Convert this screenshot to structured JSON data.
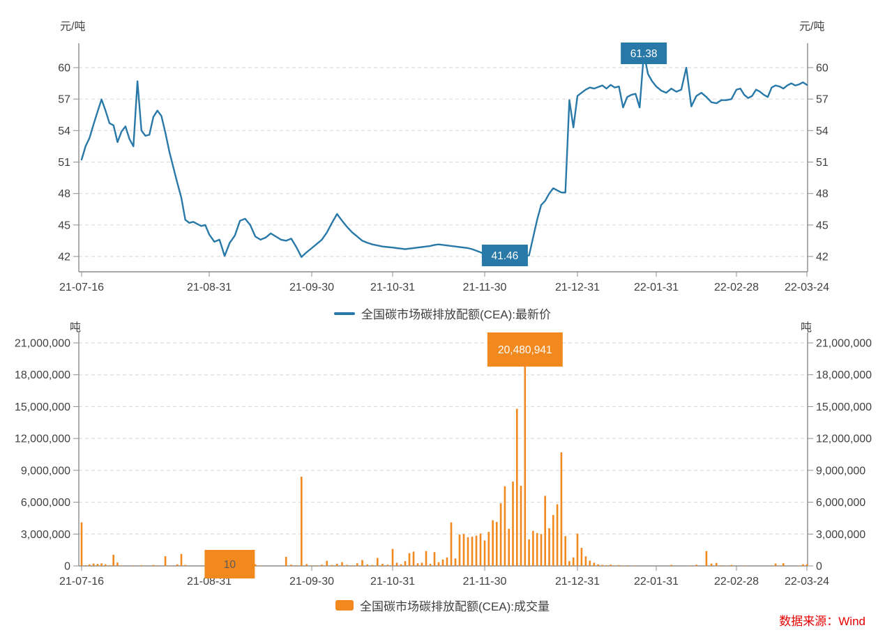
{
  "page": {
    "background": "#ffffff",
    "source_note": "数据来源：Wind",
    "source_note_color": "#e60000"
  },
  "colors": {
    "price_line": "#2878a8",
    "price_label_bg": "#2878a8",
    "volume_bar": "#f2891e",
    "volume_label_bg": "#f2891e",
    "grid": "#dcdcdc",
    "axis": "#8c8c8c",
    "tick_text": "#404040",
    "label_text_light": "#ffffff",
    "label_text_dark": "#595959"
  },
  "chart_data": [
    {
      "type": "line",
      "name": "全国碳市场碳排放配额(CEA):最新价",
      "unit_left": "元/吨",
      "unit_right": "元/吨",
      "color": "#2878a8",
      "ylim": [
        41,
        61.5
      ],
      "yticks": [
        42,
        45,
        48,
        51,
        54,
        57,
        60
      ],
      "grid": "dashed",
      "legend_position": "bottom",
      "x_tick_labels": [
        "21-07-16",
        "21-08-31",
        "21-09-30",
        "21-10-31",
        "21-11-30",
        "21-12-31",
        "22-01-31",
        "22-02-28",
        "22-03-24"
      ],
      "x_tick_indices": [
        0,
        32,
        52,
        68,
        90,
        113,
        132,
        148,
        166
      ],
      "values": [
        51.23,
        52.5,
        53.3,
        54.6,
        55.8,
        56.97,
        55.9,
        54.7,
        54.5,
        52.9,
        53.9,
        54.4,
        53.2,
        52.5,
        58.7,
        54.0,
        53.5,
        53.6,
        55.3,
        55.9,
        55.4,
        53.8,
        52.0,
        50.5,
        49.0,
        47.6,
        45.5,
        45.2,
        45.3,
        45.1,
        44.9,
        45.0,
        44.1,
        43.4,
        43.6,
        42.05,
        43.3,
        44.0,
        45.4,
        45.6,
        45.0,
        43.9,
        43.6,
        43.8,
        44.2,
        43.9,
        43.6,
        43.5,
        43.7,
        42.9,
        41.95,
        42.4,
        42.8,
        43.2,
        43.6,
        44.3,
        45.2,
        46.05,
        45.4,
        44.8,
        44.3,
        43.9,
        43.5,
        43.3,
        43.15,
        43.05,
        42.95,
        42.9,
        42.85,
        42.8,
        42.75,
        42.7,
        42.75,
        42.8,
        42.85,
        42.9,
        42.95,
        43.0,
        43.1,
        43.15,
        43.1,
        43.05,
        43.0,
        42.95,
        42.9,
        42.85,
        42.8,
        42.7,
        42.55,
        42.4,
        42.2,
        41.95,
        41.75,
        41.6,
        41.5,
        41.46,
        41.55,
        41.7,
        41.9,
        42.0,
        42.05,
        42.1,
        43.8,
        45.5,
        46.9,
        47.3,
        48.0,
        48.5,
        48.3,
        48.1,
        48.1,
        56.9,
        54.3,
        57.3,
        57.6,
        57.9,
        58.1,
        58.0,
        58.15,
        58.3,
        58.0,
        58.35,
        58.1,
        58.2,
        56.2,
        57.2,
        57.4,
        57.5,
        56.2,
        61.38,
        59.4,
        58.7,
        58.2,
        57.8,
        57.6,
        58.0,
        57.7,
        57.9,
        60.0,
        56.3,
        57.3,
        57.6,
        57.2,
        56.7,
        56.6,
        56.9,
        56.9,
        57.0,
        57.9,
        58.0,
        57.4,
        57.1,
        57.3,
        57.9,
        57.7,
        57.4,
        57.2,
        58.1,
        58.3,
        58.2,
        58.0,
        58.3,
        58.5,
        58.3,
        58.4,
        58.6,
        58.35
      ],
      "annotations": [
        {
          "text": "61.38",
          "value": 61.38,
          "index": 129,
          "placement": "above-max"
        },
        {
          "text": "41.46",
          "value": 41.46,
          "index": 95,
          "placement": "below-min"
        }
      ]
    },
    {
      "type": "bar",
      "name": "全国碳市场碳排放配额(CEA):成交量",
      "unit_left": "吨",
      "unit_right": "吨",
      "color": "#f2891e",
      "ylim": [
        0,
        21000000
      ],
      "yticks": [
        0,
        3000000,
        6000000,
        9000000,
        12000000,
        15000000,
        18000000,
        21000000
      ],
      "grid": "dashed",
      "legend_position": "bottom",
      "x_tick_labels": [
        "21-07-16",
        "21-08-31",
        "21-09-30",
        "21-10-31",
        "21-11-30",
        "21-12-31",
        "22-01-31",
        "22-02-28",
        "22-03-24"
      ],
      "x_tick_indices": [
        0,
        32,
        52,
        68,
        90,
        113,
        132,
        148,
        166
      ],
      "values": [
        4103775,
        60000,
        140000,
        220000,
        190000,
        240000,
        150000,
        60000,
        1050000,
        320000,
        30000,
        15000,
        8000,
        40000,
        20000,
        70000,
        15000,
        25000,
        95000,
        45000,
        12000,
        910000,
        35000,
        18000,
        150000,
        1130000,
        90000,
        25000,
        12000,
        8000,
        15000,
        5000,
        20000,
        10000,
        9000,
        3000,
        10,
        5000,
        160000,
        12000,
        8000,
        150000,
        30000,
        10000,
        20000,
        6000,
        15000,
        850000,
        120000,
        60000,
        8400000,
        180000,
        40000,
        60000,
        120000,
        480000,
        90000,
        200000,
        350000,
        100000,
        60000,
        250000,
        550000,
        140000,
        90000,
        750000,
        200000,
        120000,
        1600000,
        300000,
        150000,
        450000,
        1200000,
        1350000,
        250000,
        300000,
        1400000,
        200000,
        1300000,
        350000,
        600000,
        800000,
        4100000,
        700000,
        2950000,
        3000000,
        2700000,
        2750000,
        2850000,
        3050000,
        2400000,
        3200000,
        4300000,
        4150000,
        5900000,
        7500000,
        3500000,
        7950000,
        14800000,
        7550000,
        20480941,
        2500000,
        3300000,
        3100000,
        3000000,
        6600000,
        3550000,
        4800000,
        5800000,
        10700000,
        2800000,
        450000,
        800000,
        3050000,
        1700000,
        900000,
        500000,
        300000,
        150000,
        100000,
        60000,
        120000,
        40000,
        80000,
        30000,
        50000,
        20000,
        35000,
        15000,
        25000,
        10000,
        20000,
        15000,
        8000,
        12000,
        100000,
        20000,
        10000,
        15000,
        30000,
        120000,
        25000,
        1400000,
        220000,
        280000,
        60000,
        30000,
        90000,
        20000,
        15000,
        30000,
        10000,
        25000,
        15000,
        8000,
        20000,
        12000,
        40000,
        220000,
        30000,
        250000,
        20000,
        15000,
        10000,
        30000,
        150000,
        150000
      ],
      "annotations": [
        {
          "text": "20,480,941",
          "value": 20480941,
          "index": 100,
          "placement": "above-max"
        },
        {
          "text": "10",
          "value": 10,
          "index": 36,
          "placement": "on-axis"
        }
      ]
    }
  ]
}
